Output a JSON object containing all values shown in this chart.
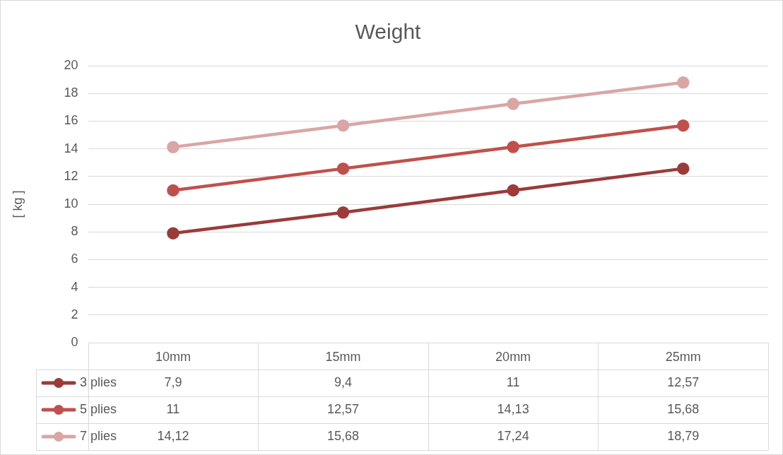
{
  "chart_data": {
    "type": "line",
    "title": "Weight",
    "ylabel": "[ kg ]",
    "categories": [
      "10mm",
      "15mm",
      "20mm",
      "25mm"
    ],
    "series": [
      {
        "name": "3 plies",
        "color": "#9b3b3a",
        "values": [
          7.9,
          9.4,
          11,
          12.57
        ],
        "value_labels": [
          "7,9",
          "9,4",
          "11",
          "12,57"
        ]
      },
      {
        "name": "5 plies",
        "color": "#c0504d",
        "values": [
          11,
          12.57,
          14.13,
          15.68
        ],
        "value_labels": [
          "11",
          "12,57",
          "14,13",
          "15,68"
        ]
      },
      {
        "name": "7 plies",
        "color": "#d9a6a5",
        "values": [
          14.12,
          15.68,
          17.24,
          18.79
        ],
        "value_labels": [
          "14,12",
          "15,68",
          "17,24",
          "18,79"
        ]
      }
    ],
    "ylim": [
      0,
      20
    ],
    "yticks": [
      0,
      2,
      4,
      6,
      8,
      10,
      12,
      14,
      16,
      18,
      20
    ],
    "grid": "y",
    "legend": "bottom",
    "marker": "circle",
    "line_style": "solid"
  }
}
